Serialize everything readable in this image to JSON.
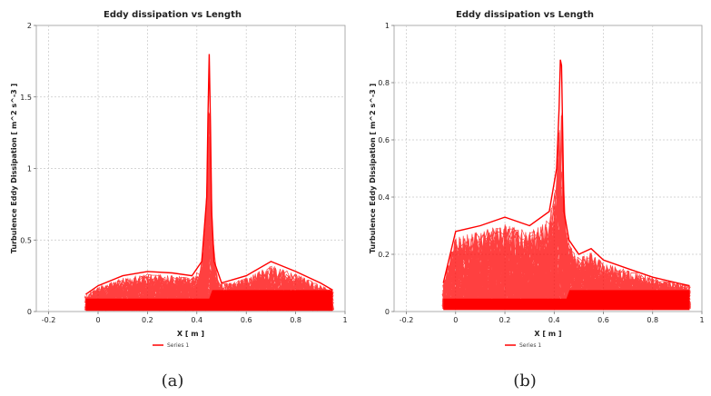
{
  "chart_data": [
    {
      "id": "a",
      "type": "line",
      "title": "Eddy dissipation vs Length",
      "xlabel": "X [ m ]",
      "ylabel": "Turbulence Eddy Dissipation [ m^2 s^-3 ]",
      "xlim": [
        -0.25,
        1
      ],
      "ylim": [
        0,
        2
      ],
      "xticks": [
        -0.2,
        0,
        0.2,
        0.4,
        0.6,
        0.8,
        1
      ],
      "xtick_labels": [
        "-0.2",
        "0",
        "0.2",
        "0.4",
        "0.6",
        "0.8",
        "1"
      ],
      "yticks": [
        0,
        0.5,
        1,
        1.5,
        2
      ],
      "ytick_labels": [
        "0",
        "0.5",
        "1",
        "1.5",
        "2"
      ],
      "grid": true,
      "legend": "bottom-center",
      "series": [
        {
          "name": "Series 1",
          "color": "#ff0000",
          "x": [
            -0.05,
            0.0,
            0.1,
            0.2,
            0.3,
            0.38,
            0.42,
            0.44,
            0.445,
            0.45,
            0.455,
            0.46,
            0.47,
            0.5,
            0.6,
            0.7,
            0.8,
            0.9,
            0.95
          ],
          "y": [
            0.12,
            0.18,
            0.25,
            0.28,
            0.27,
            0.25,
            0.35,
            0.8,
            1.35,
            1.8,
            1.3,
            0.7,
            0.35,
            0.2,
            0.25,
            0.35,
            0.28,
            0.2,
            0.15
          ]
        }
      ],
      "caption": "(a)"
    },
    {
      "id": "b",
      "type": "line",
      "title": "Eddy dissipation vs Length",
      "xlabel": "X [ m ]",
      "ylabel": "Turbulence Eddy Dissipation [ m^2 s^-3 ]",
      "xlim": [
        -0.25,
        1
      ],
      "ylim": [
        0,
        1
      ],
      "xticks": [
        -0.2,
        0,
        0.2,
        0.4,
        0.6,
        0.8,
        1
      ],
      "xtick_labels": [
        "-0.2",
        "0",
        "0.2",
        "0.4",
        "0.6",
        "0.8",
        "1"
      ],
      "yticks": [
        0,
        0.2,
        0.4,
        0.6,
        0.8,
        1
      ],
      "ytick_labels": [
        "0",
        "0.2",
        "0.4",
        "0.6",
        "0.8",
        "1"
      ],
      "grid": true,
      "legend": "bottom-center",
      "series": [
        {
          "name": "Series 1",
          "color": "#ff0000",
          "x": [
            -0.05,
            0.0,
            0.1,
            0.2,
            0.3,
            0.38,
            0.41,
            0.42,
            0.425,
            0.43,
            0.435,
            0.44,
            0.46,
            0.5,
            0.55,
            0.6,
            0.7,
            0.8,
            0.9,
            0.95
          ],
          "y": [
            0.1,
            0.28,
            0.3,
            0.33,
            0.3,
            0.35,
            0.5,
            0.71,
            0.88,
            0.86,
            0.6,
            0.35,
            0.25,
            0.2,
            0.22,
            0.18,
            0.15,
            0.12,
            0.1,
            0.09
          ]
        }
      ],
      "caption": "(b)"
    }
  ]
}
